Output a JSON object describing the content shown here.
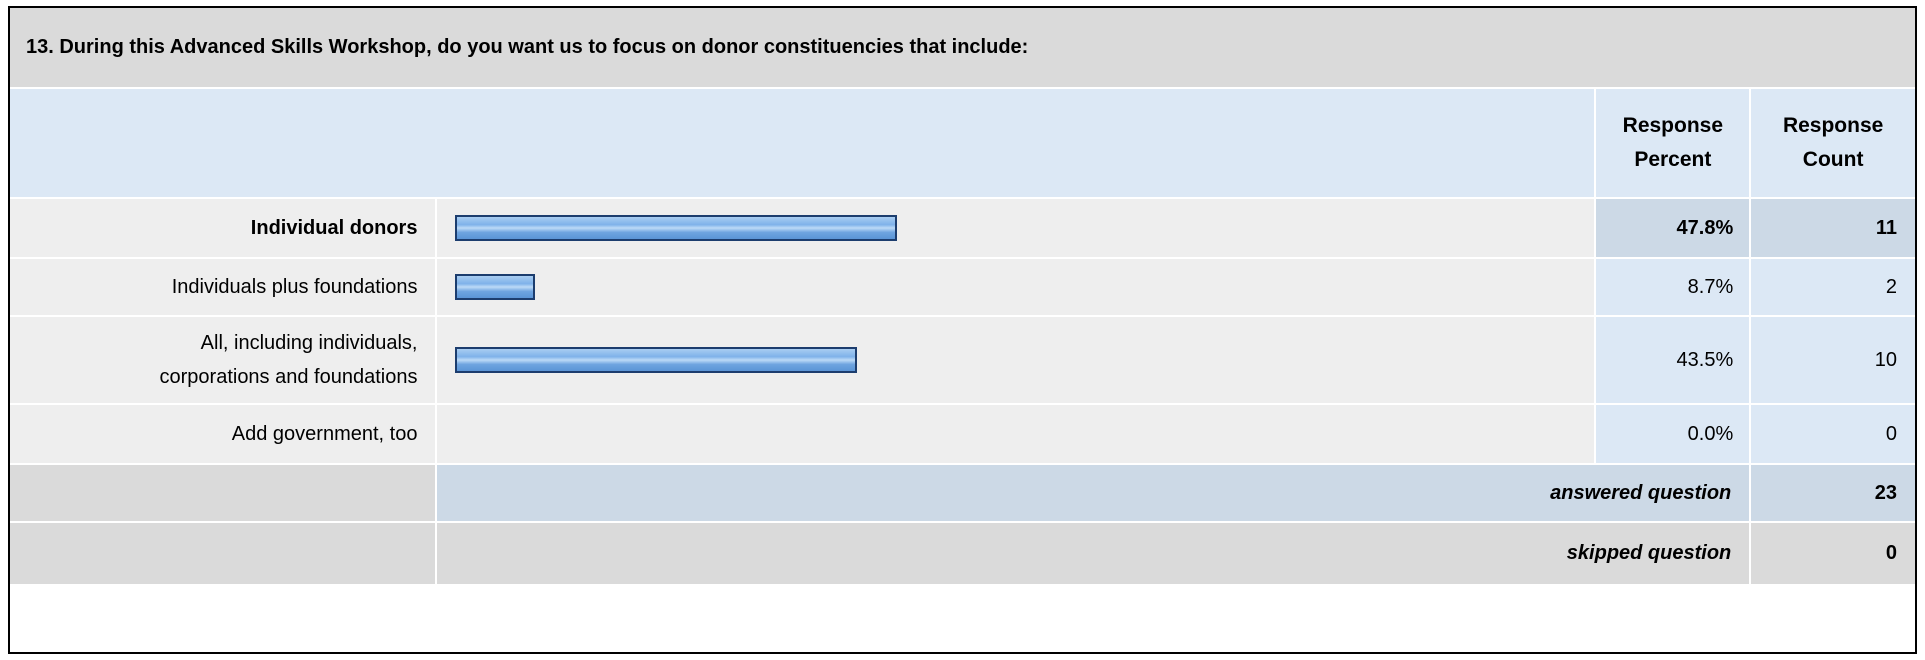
{
  "question": {
    "title": "13. During this Advanced Skills Workshop, do you want us to focus on donor constituencies that include:"
  },
  "header": {
    "percent_line1": "Response",
    "percent_line2": "Percent",
    "count_line1": "Response",
    "count_line2": "Count"
  },
  "rows": [
    {
      "label_line1": "Individual donors",
      "label_line2": "",
      "percent_label": "47.8%",
      "count_label": "11"
    },
    {
      "label_line1": "Individuals plus foundations",
      "label_line2": "",
      "percent_label": "8.7%",
      "count_label": "2"
    },
    {
      "label_line1": "All, including individuals,",
      "label_line2": "corporations and foundations",
      "percent_label": "43.5%",
      "count_label": "10"
    },
    {
      "label_line1": "Add government, too",
      "label_line2": "",
      "percent_label": "0.0%",
      "count_label": "0"
    }
  ],
  "summary": {
    "answered_label": "answered question",
    "answered_value": "23",
    "skipped_label": "skipped question",
    "skipped_value": "0"
  },
  "colors": {
    "header_bg": "#dce8f5",
    "title_bg": "#dadada",
    "row_bg": "#eeeeee",
    "highlight_bg": "#ccd9e6",
    "bar_fill": "#7fb2ea",
    "bar_border": "#1c3d6e"
  },
  "chart_data": {
    "type": "bar",
    "orientation": "horizontal",
    "categories": [
      "Individual donors",
      "Individuals plus foundations",
      "All, including individuals, corporations and foundations",
      "Add government, too"
    ],
    "values": [
      47.8,
      8.7,
      43.5,
      0.0
    ],
    "counts": [
      11,
      2,
      10,
      0
    ],
    "value_unit": "percent",
    "xlim": [
      0,
      100
    ],
    "title": "13. During this Advanced Skills Workshop, do you want us to focus on donor constituencies that include:",
    "answered_question": 23,
    "skipped_question": 0
  }
}
